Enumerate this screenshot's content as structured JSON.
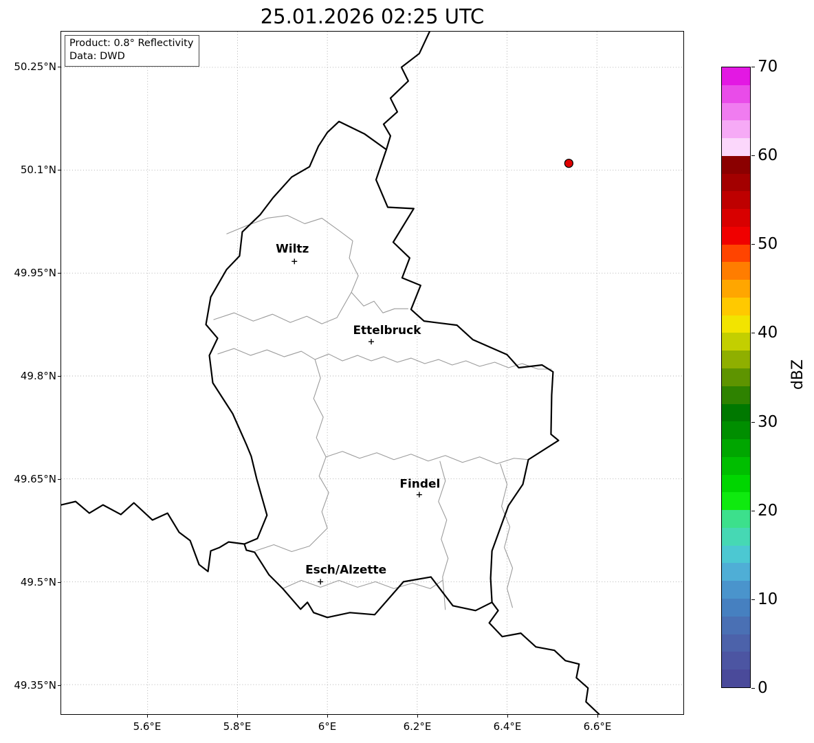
{
  "figure": {
    "title": "25.01.2026 02:25 UTC"
  },
  "info_box": {
    "product": "Product: 0.8° Reflectivity",
    "source": "Data: DWD"
  },
  "axes": {
    "yticks": [
      {
        "label": "50.25°N"
      },
      {
        "label": "50.1°N"
      },
      {
        "label": "49.95°N"
      },
      {
        "label": "49.8°N"
      },
      {
        "label": "49.65°N"
      },
      {
        "label": "49.5°N"
      },
      {
        "label": "49.35°N"
      }
    ],
    "xticks": [
      {
        "label": "5.6°E"
      },
      {
        "label": "5.8°E"
      },
      {
        "label": "6°E"
      },
      {
        "label": "6.2°E"
      },
      {
        "label": "6.4°E"
      },
      {
        "label": "6.6°E"
      }
    ]
  },
  "cities": [
    {
      "name": "Wiltz",
      "approx_lon": 5.93,
      "approx_lat": 49.97
    },
    {
      "name": "Ettelbruck",
      "approx_lon": 6.1,
      "approx_lat": 49.85
    },
    {
      "name": "Findel",
      "approx_lon": 6.21,
      "approx_lat": 49.63
    },
    {
      "name": "Esch/Alzette",
      "approx_lon": 5.98,
      "approx_lat": 49.5
    }
  ],
  "radar_site": {
    "marker_color": "#e00000",
    "marker_edge_color": "#000000",
    "approx_lon": 6.55,
    "approx_lat": 50.1
  },
  "colorbar": {
    "unit_label": "dBZ",
    "min": 0,
    "max": 70,
    "tick_labels": [
      {
        "label": "70"
      },
      {
        "label": "60"
      },
      {
        "label": "50"
      },
      {
        "label": "40"
      },
      {
        "label": "30"
      },
      {
        "label": "20"
      },
      {
        "label": "10"
      },
      {
        "label": "0"
      }
    ],
    "segment_colors_top_to_bottom": [
      "#E318E3",
      "#E94CE9",
      "#F07CF0",
      "#F6AAF6",
      "#FBD7FB",
      "#8B0000",
      "#A30000",
      "#BE0000",
      "#D80000",
      "#F00000",
      "#FF4400",
      "#FF7D00",
      "#FFA600",
      "#FFC900",
      "#F2E400",
      "#C3CF00",
      "#8FAF00",
      "#5E9400",
      "#2E8200",
      "#007800",
      "#008E00",
      "#00A600",
      "#00BE00",
      "#00D600",
      "#0FEA0F",
      "#3CE08C",
      "#46D8B4",
      "#4CC8D2",
      "#4FAED6",
      "#4A94CC",
      "#4680C0",
      "#4A70B4",
      "#4C62AA",
      "#4C55A2",
      "#4A4A9A"
    ]
  },
  "chart_data": {
    "type": "map",
    "title": "25.01.2026 02:25 UTC",
    "product": "0.8° Reflectivity",
    "data_source": "DWD",
    "lon_axis_ticks": [
      5.6,
      5.8,
      6.0,
      6.2,
      6.4,
      6.6
    ],
    "lat_axis_ticks": [
      50.25,
      50.1,
      49.95,
      49.8,
      49.65,
      49.5,
      49.35
    ],
    "lon_range": [
      5.41,
      6.79
    ],
    "lat_range": [
      49.31,
      50.3
    ],
    "colorbar_unit": "dBZ",
    "colorbar_range": [
      0,
      70
    ],
    "colorbar_tick_step": 10,
    "city_markers": [
      {
        "name": "Wiltz",
        "lon": 5.93,
        "lat": 49.97
      },
      {
        "name": "Ettelbruck",
        "lon": 6.1,
        "lat": 49.85
      },
      {
        "name": "Findel",
        "lon": 6.21,
        "lat": 49.63
      },
      {
        "name": "Esch/Alzette",
        "lon": 5.98,
        "lat": 49.5
      }
    ],
    "radar_site_marker": {
      "lon": 6.55,
      "lat": 50.1
    },
    "notes": "No reflectivity echoes visible; plot shows national border (thick black), district borders (gray), dotted lat/lon grid, four city markers and one red radar-site dot."
  }
}
